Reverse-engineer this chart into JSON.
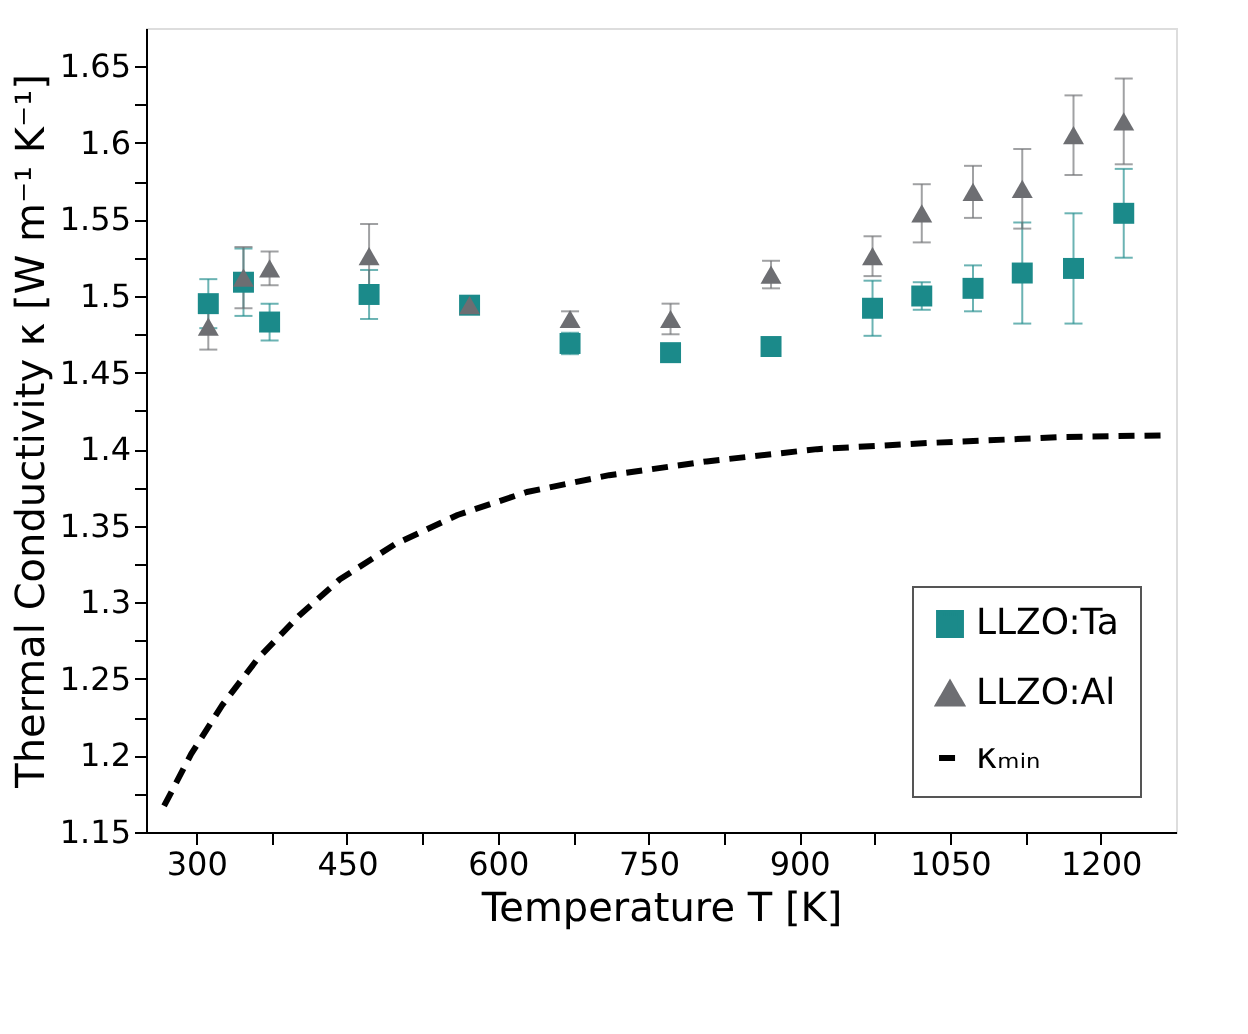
{
  "chart_data": {
    "type": "scatter",
    "xlabel": "Temperature T [K]",
    "ylabel": "Thermal Conductivity κ [W m⁻¹ K⁻¹]",
    "xlim": [
      250,
      1275
    ],
    "ylim": [
      1.15,
      1.675
    ],
    "xticks": [
      300,
      {
        "value": 375,
        "label": null
      },
      450,
      {
        "value": 525,
        "label": null
      },
      600,
      {
        "value": 675,
        "label": null
      },
      750,
      {
        "value": 825,
        "label": null
      },
      900,
      {
        "value": 975,
        "label": null
      },
      1050,
      {
        "value": 1125,
        "label": null
      },
      1200
    ],
    "yticks": [
      1.15,
      {
        "value": 1.175,
        "label": null
      },
      1.2,
      {
        "value": 1.225,
        "label": null
      },
      1.25,
      {
        "value": 1.275,
        "label": null
      },
      1.3,
      {
        "value": 1.325,
        "label": null
      },
      1.35,
      {
        "value": 1.375,
        "label": null
      },
      1.4,
      {
        "value": 1.425,
        "label": null
      },
      1.45,
      {
        "value": 1.475,
        "label": null
      },
      1.5,
      {
        "value": 1.525,
        "label": null
      },
      1.55,
      {
        "value": 1.575,
        "label": null
      },
      1.6,
      {
        "value": 1.625,
        "label": null
      },
      1.65
    ],
    "legend": "bottom right",
    "grid": false,
    "series": [
      {
        "name": "LLZO:Ta",
        "marker": "square",
        "color": "#1b8a8a",
        "x": [
          312,
          347,
          373,
          472,
          572,
          672,
          772,
          872,
          973,
          1022,
          1073,
          1122,
          1173,
          1223
        ],
        "values": [
          1.495,
          1.509,
          1.483,
          1.501,
          1.494,
          1.469,
          1.463,
          1.467,
          1.492,
          1.5,
          1.505,
          1.515,
          1.518,
          1.554
        ],
        "errors": [
          0.016,
          0.022,
          0.012,
          0.016,
          0.005,
          0.007,
          0.003,
          null,
          0.018,
          0.009,
          0.015,
          0.033,
          0.036,
          0.029
        ]
      },
      {
        "name": "LLZO:Al",
        "marker": "triangle",
        "color": "#6d6e72",
        "x": [
          312,
          347,
          373,
          472,
          572,
          672,
          772,
          872,
          973,
          1022,
          1073,
          1122,
          1173,
          1223
        ],
        "values": [
          1.48,
          1.512,
          1.518,
          1.526,
          1.494,
          1.485,
          1.485,
          1.514,
          1.526,
          1.554,
          1.568,
          1.57,
          1.605,
          1.614
        ],
        "errors": [
          0.015,
          0.02,
          0.011,
          0.021,
          0.005,
          0.005,
          0.01,
          0.009,
          0.013,
          0.019,
          0.017,
          0.026,
          0.026,
          0.028
        ]
      },
      {
        "name": "κₘᵢₙ",
        "type": "line",
        "marker": "none",
        "line_style": "dashed",
        "color": "#000000",
        "x": [
          268,
          295,
          326,
          361,
          402,
          443,
          498,
          560,
          629,
          711,
          808,
          918,
          1028,
          1166,
          1262
        ],
        "values": [
          1.167,
          1.201,
          1.233,
          1.263,
          1.291,
          1.315,
          1.338,
          1.357,
          1.372,
          1.383,
          1.392,
          1.4,
          1.404,
          1.408,
          1.409
        ]
      }
    ]
  }
}
